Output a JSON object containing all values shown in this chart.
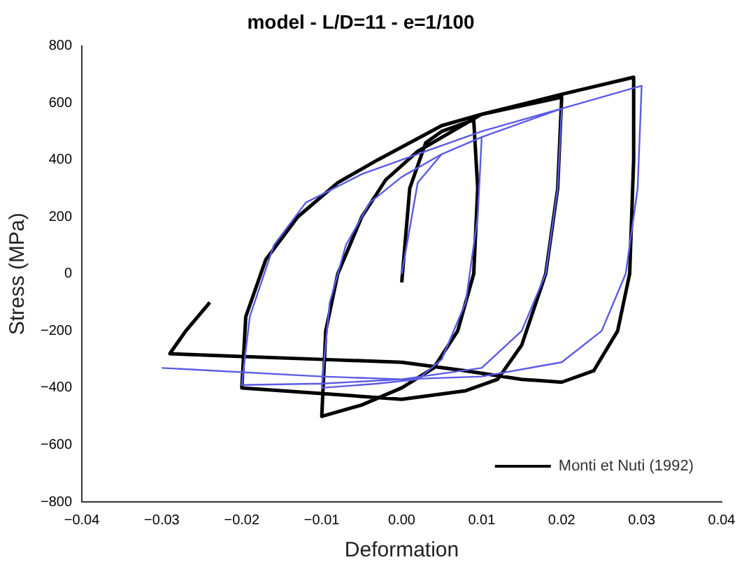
{
  "chart_data": {
    "type": "line",
    "title": "model - L/D=11 - e=1/100",
    "xlabel": "Deformation",
    "ylabel": "Stress (MPa)",
    "xlim": [
      -0.04,
      0.04
    ],
    "ylim": [
      -800,
      800
    ],
    "xticks": [
      {
        "value": -0.04,
        "label": "−0.04"
      },
      {
        "value": -0.03,
        "label": "−0.03"
      },
      {
        "value": -0.02,
        "label": "−0.02"
      },
      {
        "value": -0.01,
        "label": "−0.01"
      },
      {
        "value": 0,
        "label": "0.00"
      },
      {
        "value": 0.01,
        "label": "0.01"
      },
      {
        "value": 0.02,
        "label": "0.02"
      },
      {
        "value": 0.03,
        "label": "0.03"
      },
      {
        "value": 0.04,
        "label": "0.04"
      }
    ],
    "yticks": [
      {
        "value": -800,
        "label": "−800"
      },
      {
        "value": -600,
        "label": "−600"
      },
      {
        "value": -400,
        "label": "−400"
      },
      {
        "value": -200,
        "label": "−200"
      },
      0,
      200,
      400,
      600,
      800
    ],
    "grid": false,
    "legend": "bottom right",
    "marker": "none",
    "line_style": "solid",
    "series": [
      {
        "color": "#5a5ae6",
        "x": [
          0,
          0.002,
          0.005,
          0.01,
          0.0095,
          0.008,
          0.005,
          0.002,
          -0.003,
          -0.01,
          -0.0098,
          -0.009,
          -0.007,
          -0.004,
          0,
          0.005,
          0.01,
          0.02,
          0.0195,
          0.018,
          0.015,
          0.01,
          0,
          -0.01,
          -0.02,
          -0.0198,
          -0.019,
          -0.016,
          -0.012,
          -0.005,
          0,
          0.01,
          0.02,
          0.03,
          0.0295,
          0.028,
          0.025,
          0.02,
          0.01,
          0,
          -0.01,
          -0.03
        ],
        "values": [
          0,
          320,
          420,
          480,
          200,
          -100,
          -300,
          -370,
          -385,
          -400,
          -330,
          -100,
          100,
          250,
          340,
          420,
          480,
          580,
          300,
          0,
          -200,
          -330,
          -370,
          -385,
          -390,
          -340,
          -150,
          100,
          250,
          350,
          400,
          500,
          580,
          660,
          300,
          0,
          -200,
          -310,
          -360,
          -370,
          -360,
          -330
        ]
      },
      {
        "name": "Monti et Nuti (1992)",
        "color": "#000000",
        "x": [
          0,
          0.001,
          0.003,
          0.005,
          0.009,
          0.0095,
          0.009,
          0.007,
          0.004,
          0,
          -0.005,
          -0.01,
          -0.0095,
          -0.008,
          -0.005,
          -0.002,
          0.002,
          0.01,
          0.015,
          0.02,
          0.0195,
          0.018,
          0.015,
          0.012,
          0.008,
          0,
          -0.01,
          -0.02,
          -0.0195,
          -0.017,
          -0.013,
          -0.008,
          -0.003,
          0.005,
          0.01,
          0.02,
          0.029,
          0.029,
          0.0285,
          0.027,
          0.024,
          0.02,
          0.015,
          0.008,
          0,
          -0.01,
          -0.02,
          -0.029,
          -0.027,
          -0.024
        ],
        "values": [
          -30,
          300,
          460,
          500,
          540,
          300,
          0,
          -200,
          -330,
          -400,
          -460,
          -500,
          -200,
          0,
          200,
          330,
          430,
          560,
          590,
          620,
          300,
          0,
          -250,
          -370,
          -410,
          -440,
          -420,
          -400,
          -150,
          50,
          200,
          320,
          400,
          520,
          560,
          630,
          690,
          400,
          0,
          -200,
          -340,
          -380,
          -370,
          -340,
          -310,
          -300,
          -290,
          -280,
          -200,
          -100
        ]
      }
    ]
  }
}
